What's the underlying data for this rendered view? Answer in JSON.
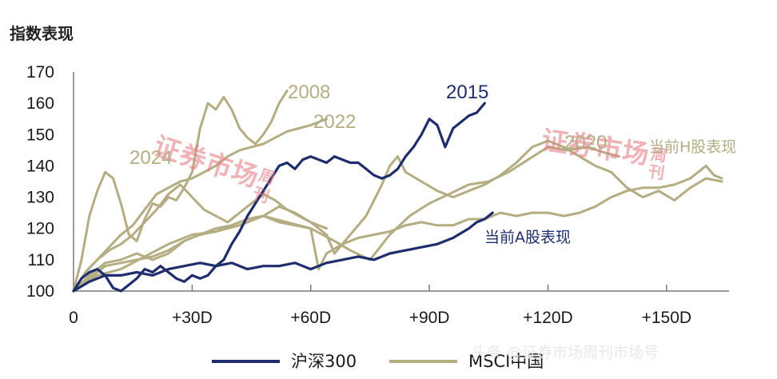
{
  "chart_data": {
    "type": "line",
    "ylabel": "指数表现",
    "ylim": [
      100,
      170
    ],
    "yticks": [
      "100",
      "110",
      "120",
      "130",
      "140",
      "150",
      "160",
      "170"
    ],
    "xlim": [
      0,
      165
    ],
    "xticks": [
      {
        "value": 0,
        "label": "0"
      },
      {
        "value": 30,
        "label": "+30D"
      },
      {
        "value": 60,
        "label": "+60D"
      },
      {
        "value": 90,
        "label": "+90D"
      },
      {
        "value": 120,
        "label": "+120D"
      },
      {
        "value": 150,
        "label": "+150D"
      }
    ],
    "legend": [
      {
        "label": "沪深300",
        "color": "#1f2d6e"
      },
      {
        "label": "MSCI中国",
        "color": "#b5ad82"
      }
    ],
    "annotations": [
      {
        "text": "2008",
        "color": "#b5ad82"
      },
      {
        "text": "2022",
        "color": "#b5ad82"
      },
      {
        "text": "2015",
        "color": "#1f2d6e"
      },
      {
        "text": "2024",
        "color": "#b5ad82"
      },
      {
        "text": "2020",
        "color": "#b5ad82"
      },
      {
        "text": "当前H股表现",
        "color": "#b5ad82"
      },
      {
        "text": "当前A股表现",
        "color": "#1f2d6e"
      }
    ],
    "series": [
      {
        "group": "沪深300",
        "color": "#1f2d6e",
        "width": 3.2,
        "points": [
          [
            0,
            100
          ],
          [
            2,
            104
          ],
          [
            4,
            106
          ],
          [
            6,
            107
          ],
          [
            8,
            105
          ],
          [
            10,
            101
          ],
          [
            12,
            100
          ],
          [
            14,
            102
          ],
          [
            16,
            104
          ],
          [
            18,
            107
          ],
          [
            20,
            106
          ],
          [
            22,
            108
          ],
          [
            24,
            106
          ],
          [
            26,
            104
          ],
          [
            28,
            103
          ],
          [
            30,
            105
          ],
          [
            32,
            104
          ],
          [
            34,
            105
          ],
          [
            36,
            108
          ],
          [
            38,
            110
          ],
          [
            40,
            115
          ],
          [
            42,
            119
          ],
          [
            44,
            124
          ],
          [
            46,
            128
          ],
          [
            48,
            132
          ],
          [
            50,
            136
          ],
          [
            52,
            140
          ],
          [
            54,
            141
          ],
          [
            56,
            139
          ],
          [
            58,
            142
          ],
          [
            60,
            143
          ],
          [
            62,
            142
          ],
          [
            64,
            141
          ],
          [
            66,
            143
          ],
          [
            68,
            142
          ],
          [
            70,
            141
          ],
          [
            72,
            141
          ],
          [
            74,
            139
          ],
          [
            76,
            137
          ],
          [
            78,
            136
          ],
          [
            80,
            137
          ],
          [
            82,
            139
          ],
          [
            84,
            143
          ],
          [
            86,
            146
          ],
          [
            88,
            150
          ],
          [
            90,
            155
          ],
          [
            92,
            153
          ],
          [
            94,
            146
          ],
          [
            96,
            152
          ],
          [
            98,
            154
          ],
          [
            100,
            156
          ],
          [
            102,
            157
          ],
          [
            104,
            160
          ]
        ]
      },
      {
        "group": "沪深300",
        "color": "#1f2d6e",
        "width": 3.2,
        "points": [
          [
            0,
            100
          ],
          [
            4,
            103
          ],
          [
            8,
            105
          ],
          [
            12,
            105
          ],
          [
            16,
            106
          ],
          [
            20,
            105
          ],
          [
            24,
            107
          ],
          [
            28,
            108
          ],
          [
            32,
            109
          ],
          [
            36,
            108
          ],
          [
            40,
            109
          ],
          [
            44,
            107
          ],
          [
            48,
            108
          ],
          [
            52,
            108
          ],
          [
            56,
            109
          ],
          [
            60,
            107
          ],
          [
            64,
            109
          ],
          [
            68,
            110
          ],
          [
            72,
            111
          ],
          [
            76,
            110
          ],
          [
            80,
            112
          ],
          [
            84,
            113
          ],
          [
            88,
            114
          ],
          [
            92,
            115
          ],
          [
            96,
            117
          ],
          [
            100,
            120
          ],
          [
            102,
            122
          ],
          [
            104,
            123
          ],
          [
            106,
            125
          ]
        ]
      },
      {
        "group": "MSCI中国",
        "color": "#b5ad82",
        "width": 3.0,
        "points": [
          [
            0,
            100
          ],
          [
            2,
            110
          ],
          [
            4,
            124
          ],
          [
            6,
            132
          ],
          [
            8,
            138
          ],
          [
            10,
            136
          ],
          [
            12,
            128
          ],
          [
            14,
            118
          ],
          [
            16,
            116
          ],
          [
            18,
            123
          ],
          [
            20,
            128
          ],
          [
            22,
            127
          ],
          [
            24,
            130
          ],
          [
            26,
            129
          ],
          [
            28,
            133
          ],
          [
            30,
            138
          ],
          [
            32,
            152
          ],
          [
            34,
            160
          ],
          [
            36,
            158
          ],
          [
            38,
            162
          ],
          [
            40,
            158
          ],
          [
            42,
            152
          ],
          [
            44,
            149
          ],
          [
            46,
            147
          ],
          [
            48,
            150
          ],
          [
            50,
            154
          ],
          [
            52,
            160
          ],
          [
            54,
            164
          ]
        ]
      },
      {
        "group": "MSCI中国",
        "color": "#b5ad82",
        "width": 3.0,
        "points": [
          [
            0,
            100
          ],
          [
            3,
            106
          ],
          [
            6,
            110
          ],
          [
            9,
            114
          ],
          [
            12,
            118
          ],
          [
            15,
            121
          ],
          [
            18,
            126
          ],
          [
            21,
            131
          ],
          [
            24,
            133
          ],
          [
            27,
            135
          ],
          [
            30,
            136
          ],
          [
            33,
            138
          ],
          [
            36,
            140
          ],
          [
            39,
            143
          ],
          [
            42,
            145
          ],
          [
            45,
            146
          ],
          [
            48,
            147
          ],
          [
            51,
            149
          ],
          [
            54,
            151
          ],
          [
            57,
            152
          ],
          [
            60,
            153
          ],
          [
            62,
            154
          ],
          [
            64,
            155
          ]
        ]
      },
      {
        "group": "MSCI中国",
        "color": "#b5ad82",
        "width": 3.0,
        "points": [
          [
            0,
            100
          ],
          [
            3,
            106
          ],
          [
            6,
            110
          ],
          [
            9,
            113
          ],
          [
            12,
            115
          ],
          [
            15,
            118
          ],
          [
            18,
            122
          ],
          [
            21,
            126
          ],
          [
            24,
            131
          ],
          [
            27,
            134
          ],
          [
            30,
            130
          ],
          [
            33,
            126
          ],
          [
            36,
            124
          ],
          [
            39,
            122
          ],
          [
            42,
            125
          ],
          [
            45,
            128
          ],
          [
            48,
            131
          ],
          [
            51,
            129
          ],
          [
            54,
            126
          ],
          [
            57,
            124
          ],
          [
            60,
            122
          ],
          [
            62,
            121
          ],
          [
            64,
            120
          ]
        ]
      },
      {
        "group": "MSCI中国",
        "color": "#b5ad82",
        "width": 3.0,
        "points": [
          [
            0,
            100
          ],
          [
            6,
            105
          ],
          [
            12,
            107
          ],
          [
            18,
            111
          ],
          [
            24,
            115
          ],
          [
            30,
            118
          ],
          [
            36,
            119
          ],
          [
            42,
            121
          ],
          [
            48,
            124
          ],
          [
            54,
            122
          ],
          [
            60,
            120
          ],
          [
            66,
            116
          ],
          [
            70,
            113
          ],
          [
            75,
            110
          ],
          [
            80,
            118
          ],
          [
            85,
            124
          ],
          [
            90,
            128
          ],
          [
            95,
            131
          ],
          [
            100,
            134
          ],
          [
            105,
            135
          ],
          [
            110,
            138
          ],
          [
            115,
            142
          ],
          [
            120,
            146
          ],
          [
            125,
            145
          ],
          [
            130,
            146
          ],
          [
            135,
            144
          ],
          [
            138,
            143
          ]
        ]
      },
      {
        "group": "MSCI中国",
        "color": "#b5ad82",
        "width": 3.0,
        "points": [
          [
            0,
            100
          ],
          [
            4,
            104
          ],
          [
            8,
            108
          ],
          [
            12,
            109
          ],
          [
            16,
            110
          ],
          [
            20,
            111
          ],
          [
            24,
            113
          ],
          [
            28,
            116
          ],
          [
            32,
            118
          ],
          [
            36,
            119
          ],
          [
            40,
            121
          ],
          [
            44,
            123
          ],
          [
            48,
            124
          ],
          [
            52,
            122
          ],
          [
            56,
            121
          ],
          [
            60,
            120
          ],
          [
            62,
            107
          ],
          [
            64,
            112
          ],
          [
            68,
            115
          ],
          [
            72,
            117
          ],
          [
            76,
            118
          ],
          [
            80,
            119
          ],
          [
            84,
            121
          ],
          [
            88,
            122
          ],
          [
            92,
            121
          ],
          [
            96,
            121
          ],
          [
            100,
            123
          ],
          [
            104,
            123
          ],
          [
            108,
            125
          ],
          [
            112,
            124
          ],
          [
            116,
            125
          ],
          [
            120,
            125
          ],
          [
            124,
            124
          ],
          [
            128,
            125
          ],
          [
            132,
            127
          ],
          [
            136,
            130
          ],
          [
            140,
            132
          ],
          [
            144,
            133
          ],
          [
            148,
            133
          ],
          [
            152,
            134
          ],
          [
            156,
            136
          ],
          [
            160,
            140
          ],
          [
            162,
            137
          ],
          [
            164,
            136
          ]
        ]
      },
      {
        "group": "MSCI中国",
        "color": "#b5ad82",
        "width": 3.0,
        "points": [
          [
            0,
            100
          ],
          [
            4,
            105
          ],
          [
            8,
            109
          ],
          [
            12,
            110
          ],
          [
            16,
            112
          ],
          [
            20,
            110
          ],
          [
            24,
            112
          ],
          [
            28,
            116
          ],
          [
            32,
            118
          ],
          [
            36,
            120
          ],
          [
            40,
            121
          ],
          [
            44,
            123
          ],
          [
            48,
            124
          ],
          [
            52,
            127
          ],
          [
            56,
            125
          ],
          [
            60,
            122
          ],
          [
            64,
            118
          ],
          [
            66,
            112
          ],
          [
            70,
            118
          ],
          [
            74,
            124
          ],
          [
            78,
            134
          ],
          [
            80,
            140
          ],
          [
            82,
            143
          ],
          [
            84,
            138
          ],
          [
            88,
            135
          ],
          [
            92,
            132
          ],
          [
            96,
            130
          ],
          [
            100,
            132
          ],
          [
            104,
            134
          ],
          [
            108,
            137
          ],
          [
            112,
            141
          ],
          [
            116,
            146
          ],
          [
            120,
            148
          ],
          [
            124,
            146
          ],
          [
            128,
            143
          ],
          [
            132,
            140
          ],
          [
            136,
            138
          ],
          [
            140,
            133
          ],
          [
            144,
            130
          ],
          [
            148,
            132
          ],
          [
            152,
            129
          ],
          [
            156,
            133
          ],
          [
            160,
            136
          ],
          [
            164,
            135
          ]
        ]
      }
    ]
  },
  "watermark": {
    "text": "证券市场周刊",
    "chars": [
      "证",
      "券",
      "市",
      "场",
      "周",
      "刊"
    ],
    "credit": "头条 @证券市场周刊市场号"
  }
}
